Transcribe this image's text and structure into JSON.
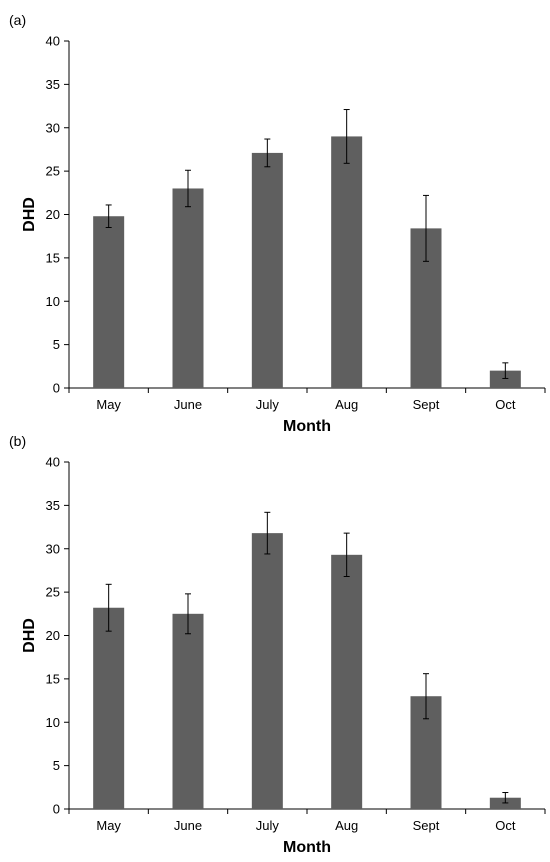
{
  "chart_data": [
    {
      "type": "bar",
      "panel_label": "(a)",
      "categories": [
        "May",
        "June",
        "July",
        "Aug",
        "Sept",
        "Oct"
      ],
      "values": [
        19.8,
        23.0,
        27.1,
        29.0,
        18.4,
        2.0
      ],
      "errors": [
        1.3,
        2.1,
        1.6,
        3.1,
        3.8,
        0.9
      ],
      "xlabel": "Month",
      "ylabel": "DHD",
      "ylim": [
        0,
        40
      ],
      "yticks": [
        "0",
        "5",
        "10",
        "15",
        "20",
        "25",
        "30",
        "35",
        "40"
      ],
      "bar_color": "#5f5f5f",
      "grid": false
    },
    {
      "type": "bar",
      "panel_label": "(b)",
      "categories": [
        "May",
        "June",
        "July",
        "Aug",
        "Sept",
        "Oct"
      ],
      "values": [
        23.2,
        22.5,
        31.8,
        29.3,
        13.0,
        1.3
      ],
      "errors": [
        2.7,
        2.3,
        2.4,
        2.5,
        2.6,
        0.6
      ],
      "xlabel": "Month",
      "ylabel": "DHD",
      "ylim": [
        0,
        40
      ],
      "yticks": [
        "0",
        "5",
        "10",
        "15",
        "20",
        "25",
        "30",
        "35",
        "40"
      ],
      "bar_color": "#5f5f5f",
      "grid": false
    }
  ]
}
